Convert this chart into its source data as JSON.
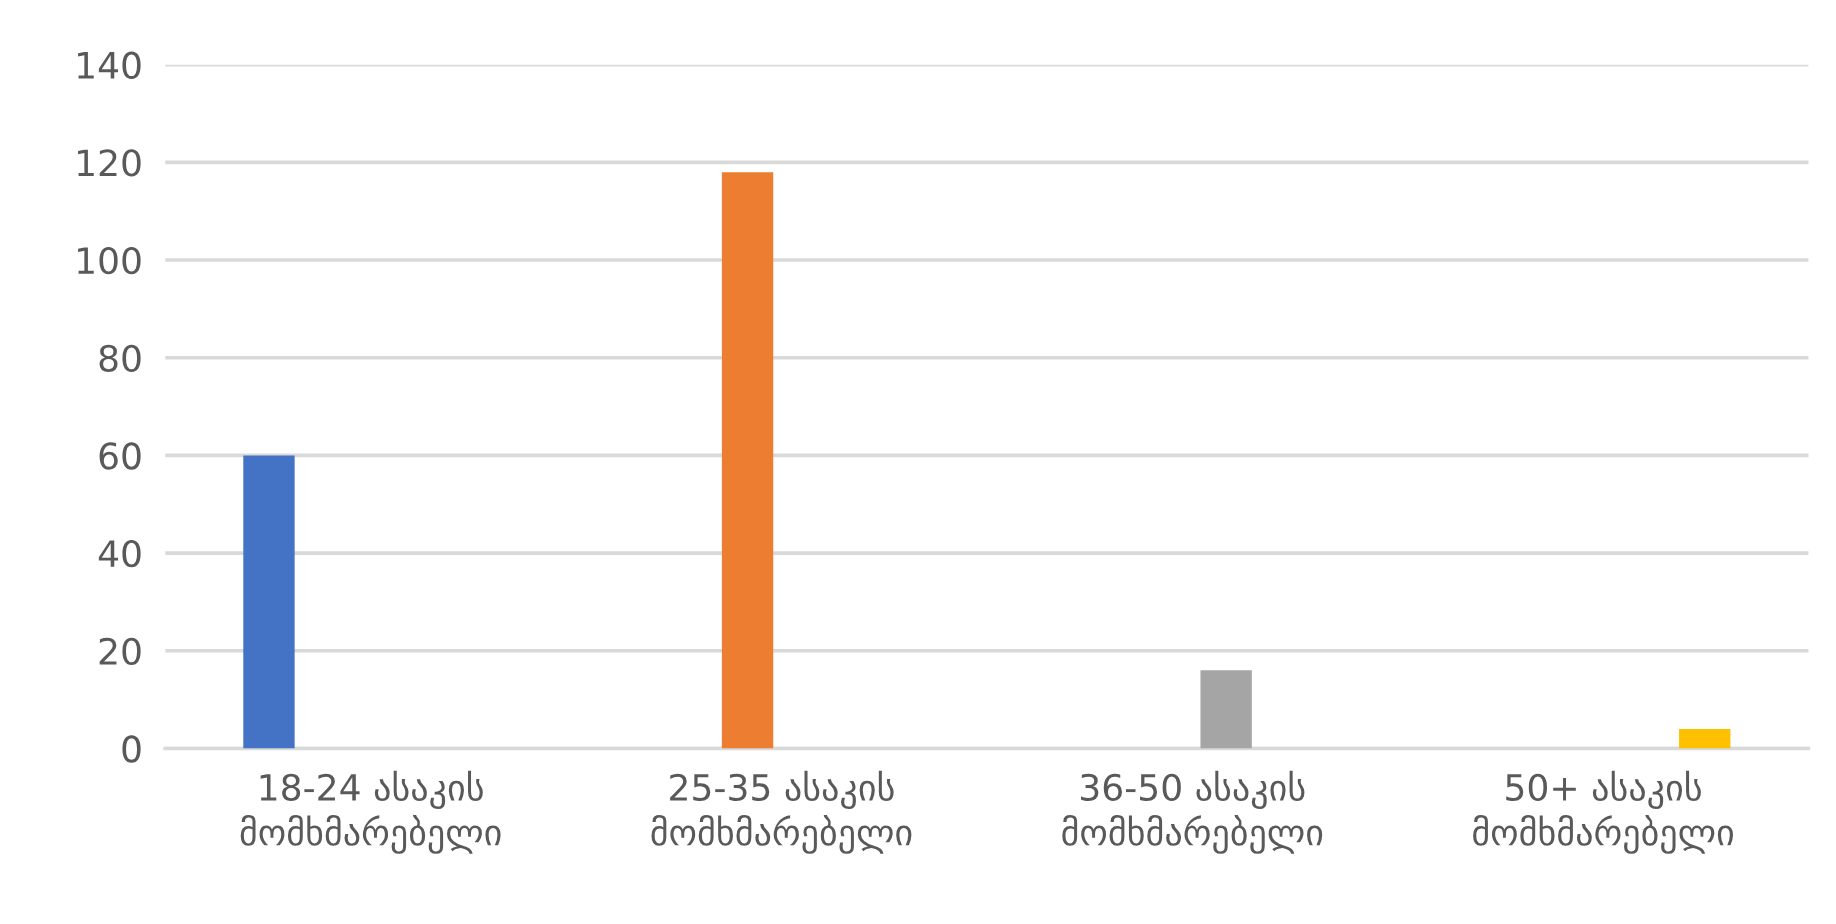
{
  "chart_data": {
    "type": "bar",
    "categories": [
      "18-24 ასაკის მომხმარებელი",
      "25-35 ასაკის მომხმარებელი",
      "36-50 ასაკის მომხმარებელი",
      "50+ ასაკის მომხმარებელი"
    ],
    "series": [
      {
        "color": "#4472c4",
        "values": [
          60,
          null,
          null,
          null
        ]
      },
      {
        "color": "#ed7d31",
        "values": [
          null,
          118,
          null,
          null
        ]
      },
      {
        "color": "#a5a5a5",
        "values": [
          null,
          null,
          16,
          null
        ]
      },
      {
        "color": "#ffc000",
        "values": [
          null,
          null,
          null,
          4
        ]
      }
    ],
    "ylim": [
      0,
      140
    ],
    "yticks": [
      0,
      20,
      40,
      60,
      80,
      100,
      120,
      140
    ],
    "grid": "y"
  }
}
